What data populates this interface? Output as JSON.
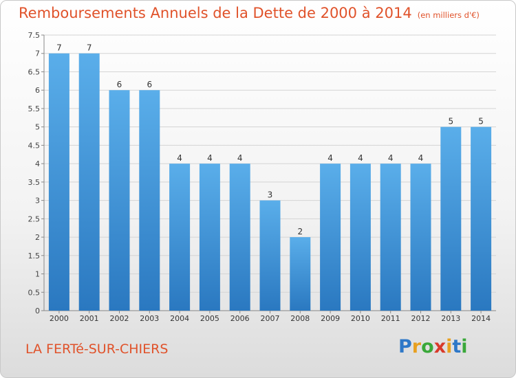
{
  "header": {
    "title": "Remboursements Annuels de la Dette de 2000 à 2014",
    "unit": "(en milliers d'€)"
  },
  "footer": {
    "commune": "LA FERTé-SUR-CHIERS",
    "logo_letters": [
      "P",
      "r",
      "o",
      "x",
      "i",
      "t",
      "i"
    ],
    "logo_colors": [
      "#2e78c8",
      "#e8a020",
      "#3aa83a",
      "#d83a2a",
      "#e8a020",
      "#2e78c8",
      "#3aa83a"
    ]
  },
  "chart_data": {
    "type": "bar",
    "title": "Remboursements Annuels de la Dette de 2000 à 2014",
    "categories": [
      "2000",
      "2001",
      "2002",
      "2003",
      "2004",
      "2005",
      "2006",
      "2007",
      "2008",
      "2009",
      "2010",
      "2011",
      "2012",
      "2013",
      "2014"
    ],
    "values": [
      7,
      7,
      6,
      6,
      4,
      4,
      4,
      3,
      2,
      4,
      4,
      4,
      4,
      5,
      5
    ],
    "data_labels": [
      "7",
      "7",
      "6",
      "6",
      "4",
      "4",
      "4",
      "3",
      "2",
      "4",
      "4",
      "4",
      "4",
      "5",
      "5"
    ],
    "ylim": [
      0,
      7.5
    ],
    "yticks": [
      0,
      0.5,
      1,
      1.5,
      2,
      2.5,
      3,
      3.5,
      4,
      4.5,
      5,
      5.5,
      6,
      6.5,
      7,
      7.5
    ],
    "ytick_labels": [
      "0",
      "0.5",
      "1",
      "1.5",
      "2",
      "2.5",
      "3",
      "3.5",
      "4",
      "4.5",
      "5",
      "5.5",
      "6",
      "6.5",
      "7",
      "7.5"
    ],
    "grid": true,
    "bar_color": "#4a90d9"
  }
}
